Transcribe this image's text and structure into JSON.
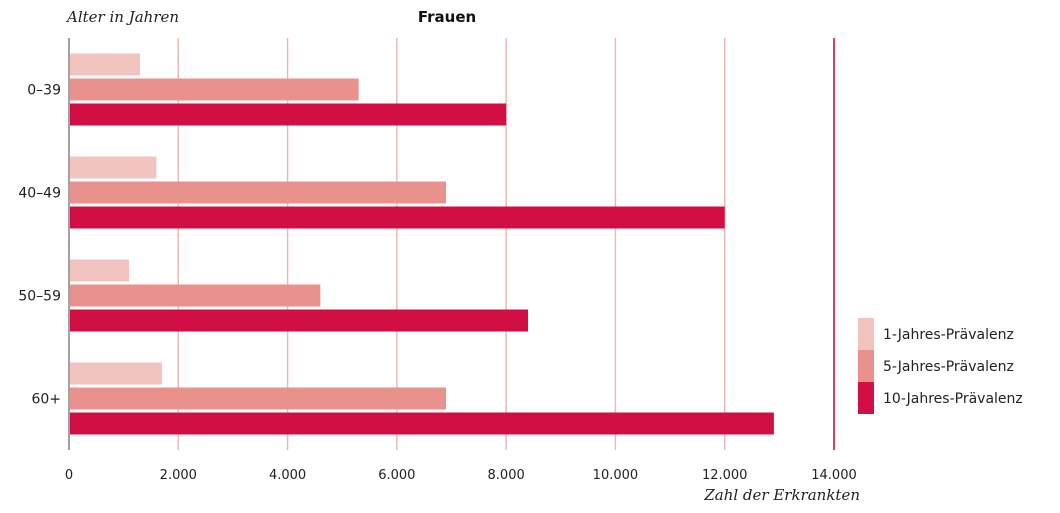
{
  "chart_data": {
    "type": "bar",
    "orientation": "horizontal",
    "title": "Frauen",
    "ylabel": "Alter in Jahren",
    "xlabel": "Zahl der Erkrankten",
    "categories": [
      "0–39",
      "40–49",
      "50–59",
      "60+"
    ],
    "series": [
      {
        "name": "1-Jahres-Prävalenz",
        "color": "#f2c4c0",
        "values": [
          1300,
          1600,
          1100,
          1700
        ]
      },
      {
        "name": "5-Jahres-Prävalenz",
        "color": "#e8918d",
        "values": [
          5300,
          6900,
          4600,
          6900
        ]
      },
      {
        "name": "10-Jahres-Prävalenz",
        "color": "#d20f45",
        "values": [
          8000,
          12000,
          8400,
          12900
        ]
      }
    ],
    "xlim": [
      0,
      14000
    ],
    "xticks": [
      0,
      2000,
      4000,
      6000,
      8000,
      10000,
      12000,
      14000
    ],
    "xtick_labels": [
      "0",
      "2.000",
      "4.000",
      "6.000",
      "8.000",
      "10.000",
      "12.000",
      "14.000"
    ],
    "grid": true,
    "legend_position": "right-bottom"
  }
}
